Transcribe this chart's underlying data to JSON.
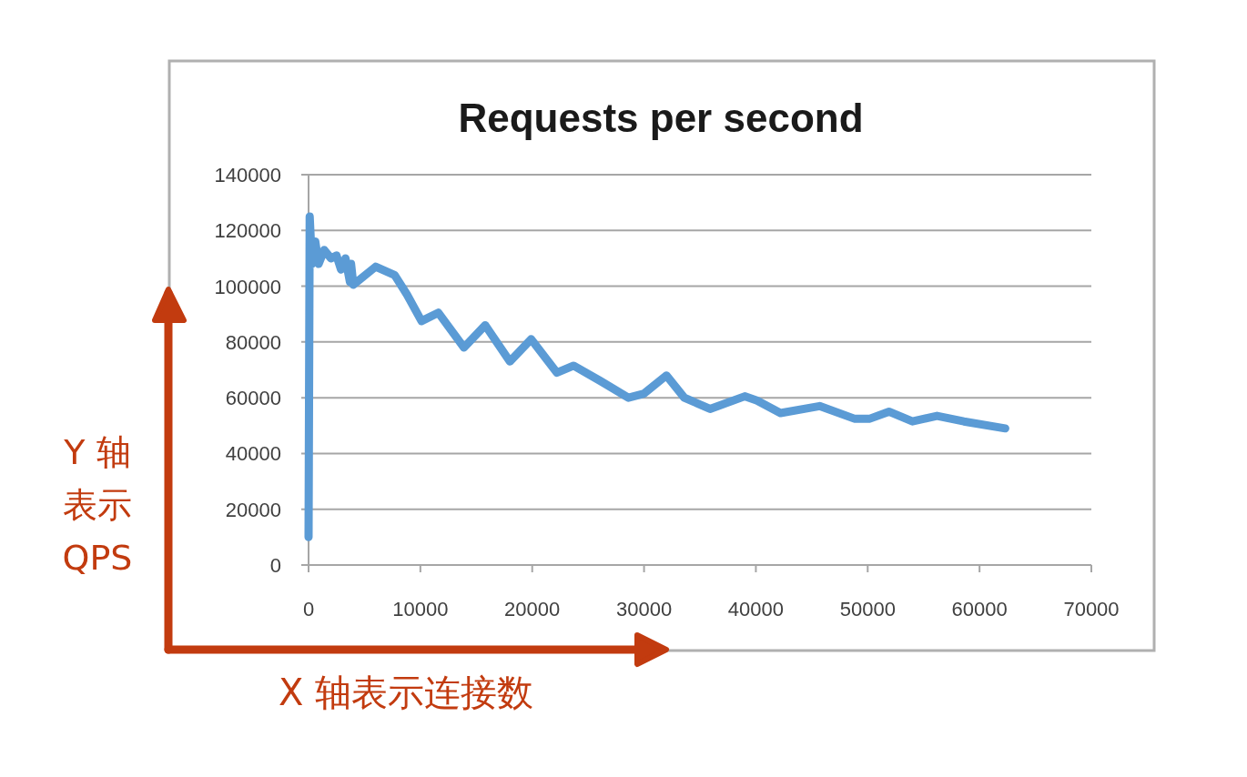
{
  "chart_data": {
    "type": "line",
    "title": "Requests per second",
    "xlabel": "X 轴表示连接数",
    "ylabel": "Y 轴表示 QPS",
    "x": [
      0,
      100,
      300,
      600,
      900,
      1400,
      2000,
      2500,
      2900,
      3300,
      3700,
      3800,
      4000,
      6000,
      7700,
      8800,
      10100,
      11600,
      13900,
      15800,
      18000,
      19900,
      22200,
      23700,
      26100,
      28600,
      30000,
      32000,
      33600,
      35900,
      39000,
      40100,
      42200,
      45700,
      48800,
      50200,
      51900,
      54000,
      56200,
      58600,
      62300
    ],
    "series": [
      {
        "color": "#5b9bd5",
        "values": [
          10000,
          125000,
          108000,
          116000,
          108000,
          113000,
          110000,
          111000,
          106000,
          110000,
          101500,
          108000,
          100500,
          107000,
          104000,
          97000,
          87500,
          90500,
          78000,
          86000,
          73000,
          81000,
          69000,
          71500,
          66000,
          60000,
          61500,
          68000,
          60000,
          56000,
          60500,
          59000,
          54500,
          57000,
          52500,
          52500,
          55000,
          51500,
          53500,
          51500,
          49000
        ]
      }
    ],
    "xlim": [
      0,
      70000
    ],
    "xticks": [
      0,
      10000,
      20000,
      30000,
      40000,
      50000,
      60000,
      70000
    ],
    "ylim": [
      0,
      140000
    ],
    "yticks": [
      0,
      20000,
      40000,
      60000,
      80000,
      100000,
      120000,
      140000
    ],
    "grid": "y"
  }
}
